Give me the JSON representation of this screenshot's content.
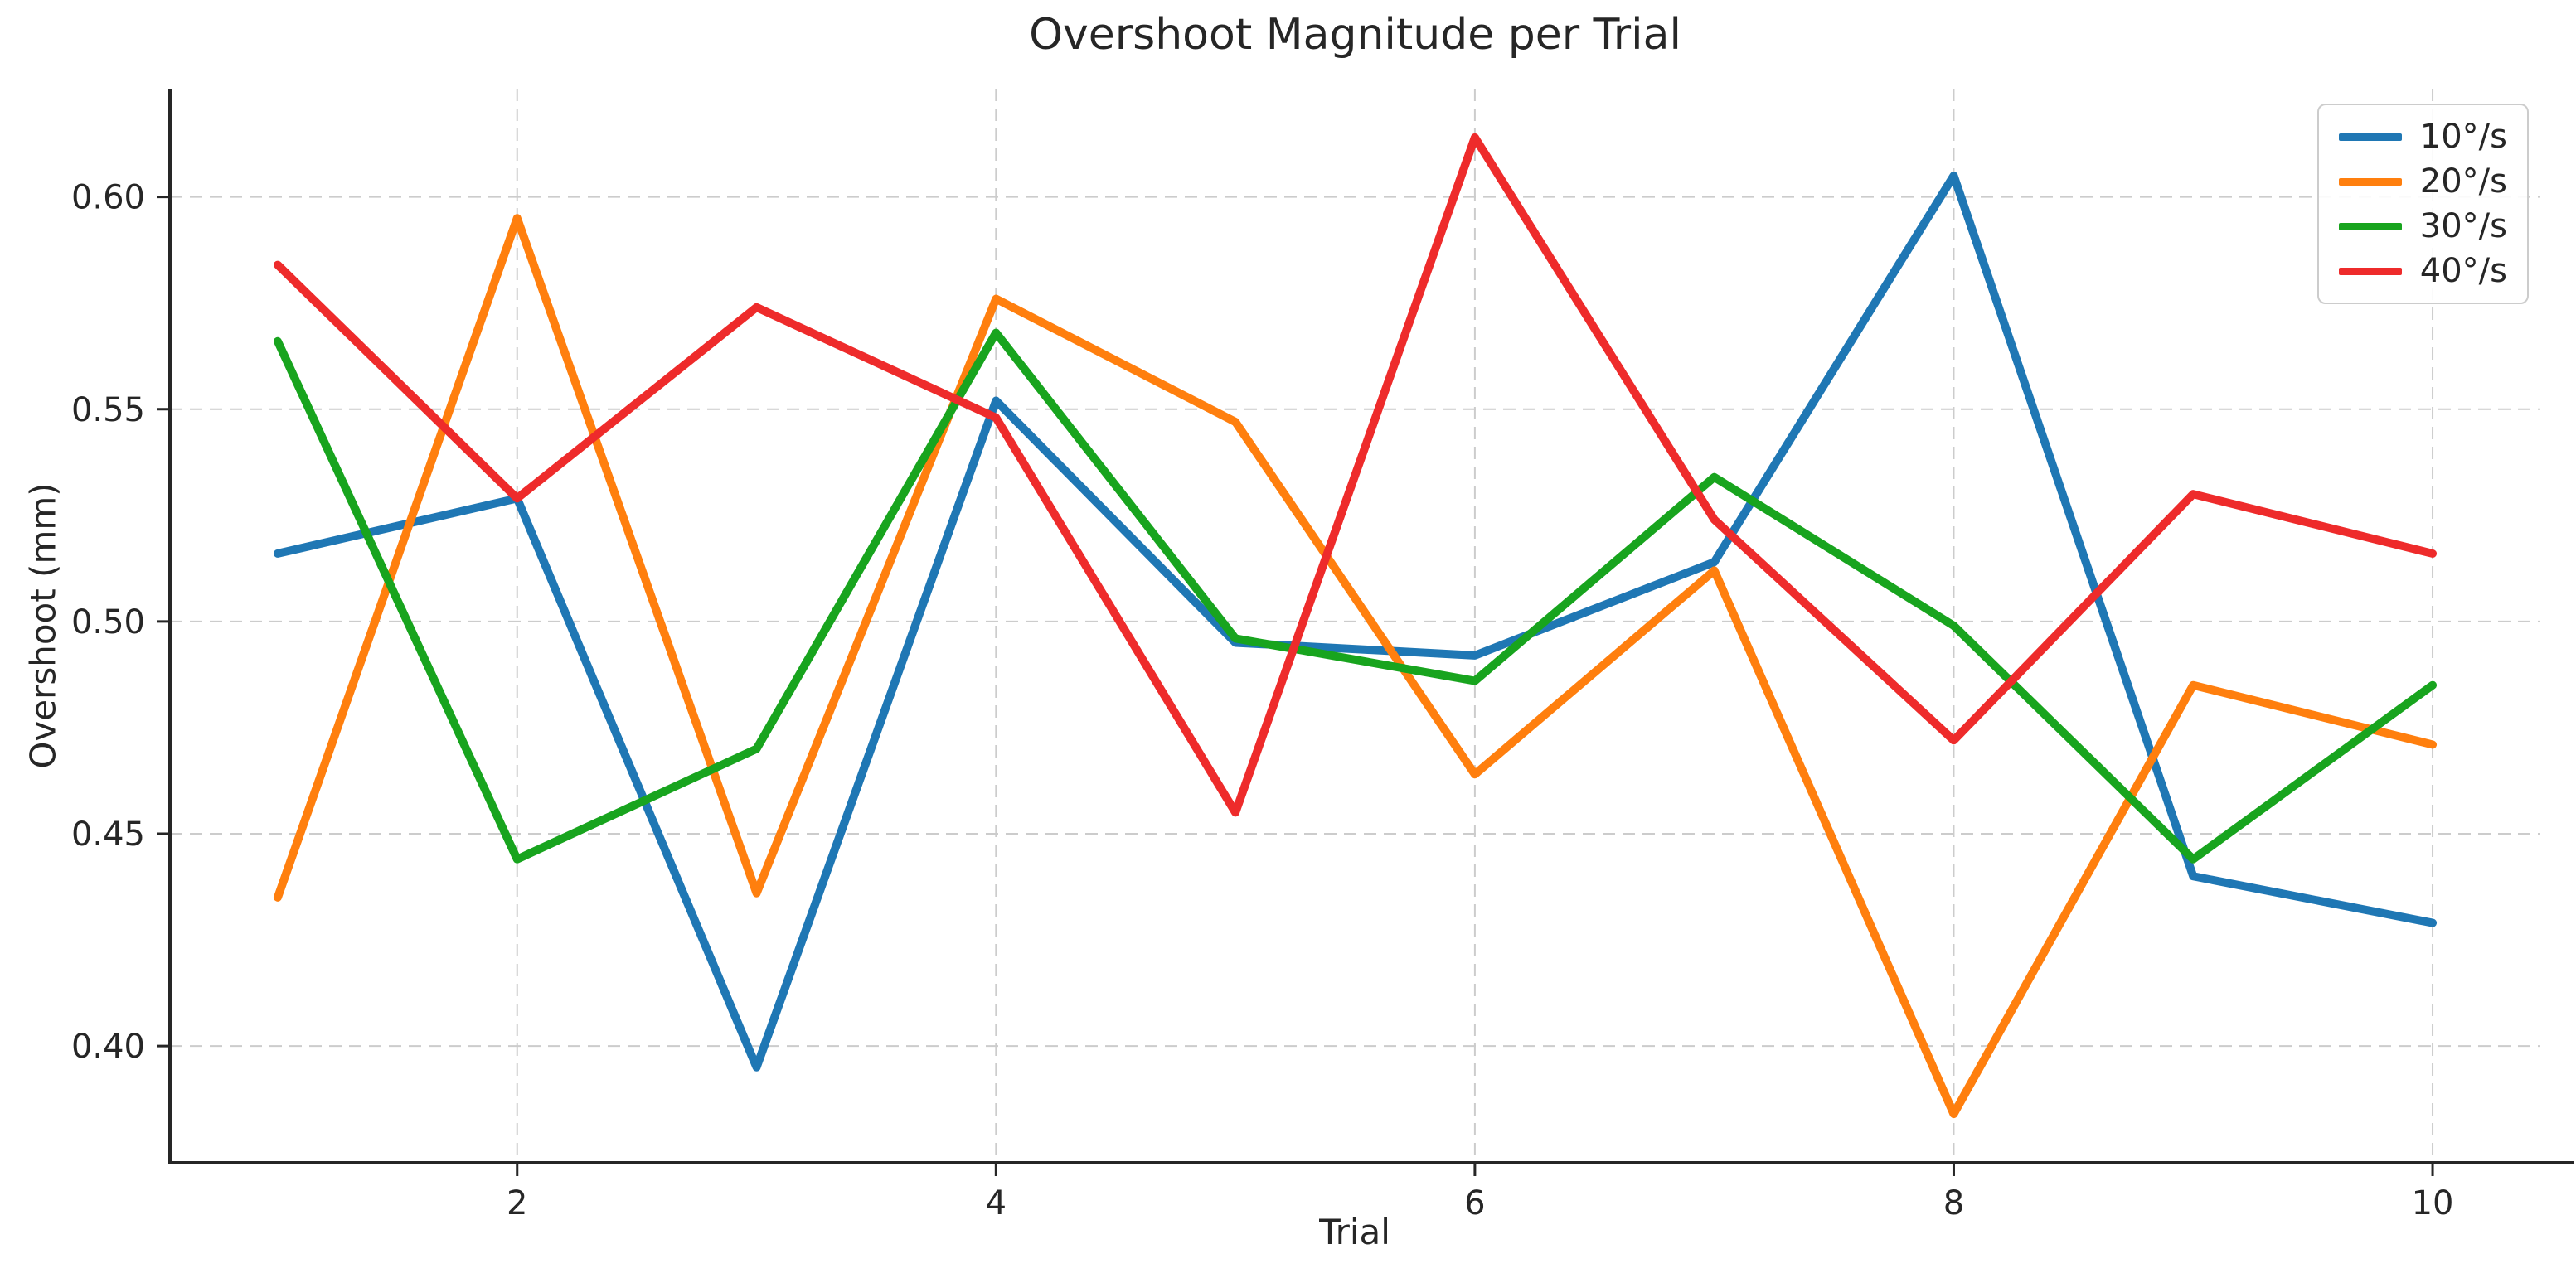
{
  "title": "Overshoot Magnitude per Trial",
  "chart_data": {
    "type": "line",
    "title": "Overshoot Magnitude per Trial",
    "xlabel": "Trial",
    "ylabel": "Overshoot (mm)",
    "x": [
      1,
      2,
      3,
      4,
      5,
      6,
      7,
      8,
      9,
      10
    ],
    "series": [
      {
        "name": "10°/s",
        "color": "#1f77b4",
        "values": [
          0.516,
          0.529,
          0.395,
          0.552,
          0.495,
          0.492,
          0.514,
          0.605,
          0.44,
          0.429
        ]
      },
      {
        "name": "20°/s",
        "color": "#ff7f0e",
        "values": [
          0.435,
          0.595,
          0.436,
          0.576,
          0.547,
          0.464,
          0.512,
          0.384,
          0.485,
          0.471
        ]
      },
      {
        "name": "30°/s",
        "color": "#18a41e",
        "values": [
          0.566,
          0.444,
          0.47,
          0.568,
          0.496,
          0.486,
          0.534,
          0.499,
          0.444,
          0.485
        ]
      },
      {
        "name": "40°/s",
        "color": "#ee2b2b",
        "values": [
          0.584,
          0.529,
          0.574,
          0.548,
          0.455,
          0.614,
          0.524,
          0.472,
          0.53,
          0.516
        ]
      }
    ],
    "xlim": [
      0.55,
      10.45
    ],
    "ylim": [
      0.3725,
      0.6255
    ],
    "xticks": [
      2,
      4,
      6,
      8,
      10
    ],
    "yticks": [
      0.4,
      0.45,
      0.5,
      0.55,
      0.6
    ],
    "grid": "dashed, both axes",
    "legend_position": "upper right",
    "legend_labels": [
      "10°/s",
      "20°/s",
      "30°/s",
      "40°/s"
    ]
  }
}
